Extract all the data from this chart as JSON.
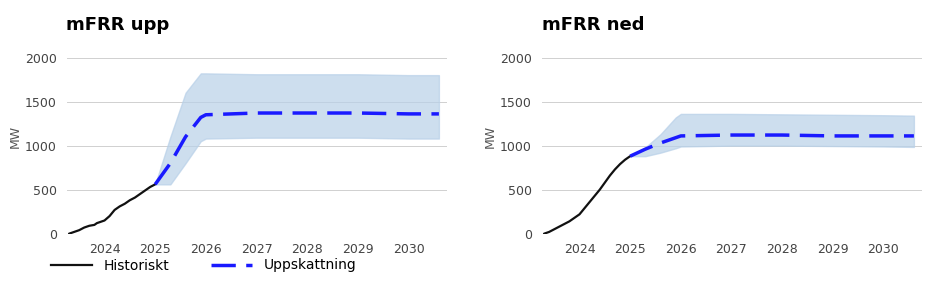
{
  "title_left": "mFRR upp",
  "title_right": "mFRR ned",
  "ylabel": "MW",
  "background_color": "#ffffff",
  "hist_x_left": [
    2023.3,
    2023.35,
    2023.4,
    2023.5,
    2023.6,
    2023.7,
    2023.8,
    2023.85,
    2023.9,
    2024.0,
    2024.1,
    2024.2,
    2024.3,
    2024.4,
    2024.5,
    2024.6,
    2024.7,
    2024.8,
    2024.9,
    2025.0
  ],
  "hist_y_left": [
    0,
    10,
    20,
    40,
    70,
    90,
    100,
    120,
    130,
    150,
    200,
    270,
    310,
    340,
    380,
    410,
    450,
    490,
    530,
    560
  ],
  "est_x_left": [
    2025.0,
    2025.3,
    2025.6,
    2025.9,
    2026.0,
    2027.0,
    2028.0,
    2029.0,
    2030.0,
    2030.6
  ],
  "est_y_left": [
    560,
    800,
    1100,
    1320,
    1350,
    1370,
    1370,
    1370,
    1360,
    1360
  ],
  "band_upper_left": [
    560,
    1100,
    1600,
    1820,
    1820,
    1810,
    1810,
    1810,
    1800,
    1800
  ],
  "band_lower_left": [
    560,
    560,
    800,
    1050,
    1080,
    1090,
    1090,
    1090,
    1080,
    1080
  ],
  "hist_x_right": [
    2023.3,
    2023.35,
    2023.4,
    2023.5,
    2023.6,
    2023.7,
    2023.8,
    2023.9,
    2024.0,
    2024.1,
    2024.2,
    2024.3,
    2024.4,
    2024.5,
    2024.6,
    2024.7,
    2024.8,
    2024.9,
    2025.0
  ],
  "hist_y_right": [
    0,
    10,
    20,
    50,
    80,
    110,
    140,
    180,
    220,
    290,
    360,
    430,
    500,
    580,
    660,
    730,
    790,
    840,
    880
  ],
  "est_x_right": [
    2025.0,
    2025.3,
    2025.6,
    2025.9,
    2026.0,
    2027.0,
    2028.0,
    2029.0,
    2030.0,
    2030.6
  ],
  "est_y_right": [
    880,
    960,
    1030,
    1090,
    1110,
    1120,
    1120,
    1110,
    1110,
    1110
  ],
  "band_upper_right": [
    880,
    980,
    1130,
    1320,
    1360,
    1360,
    1355,
    1350,
    1345,
    1340
  ],
  "band_lower_right": [
    880,
    880,
    920,
    970,
    990,
    1000,
    1000,
    995,
    990,
    985
  ],
  "xlim_left": [
    2023.25,
    2030.75
  ],
  "xlim_right": [
    2023.25,
    2030.75
  ],
  "ylim": [
    0,
    2200
  ],
  "xticks": [
    2024,
    2025,
    2026,
    2027,
    2028,
    2029,
    2030
  ],
  "yticks": [
    0,
    500,
    1000,
    1500,
    2000
  ],
  "line_color_hist": "#111111",
  "line_color_est": "#1a1aff",
  "band_color": "#b8d0e8",
  "band_alpha": 0.7,
  "legend_hist_label": "Historiskt",
  "legend_est_label": "Uppskattning",
  "title_fontsize": 13,
  "label_fontsize": 9,
  "tick_fontsize": 9,
  "legend_fontsize": 10
}
